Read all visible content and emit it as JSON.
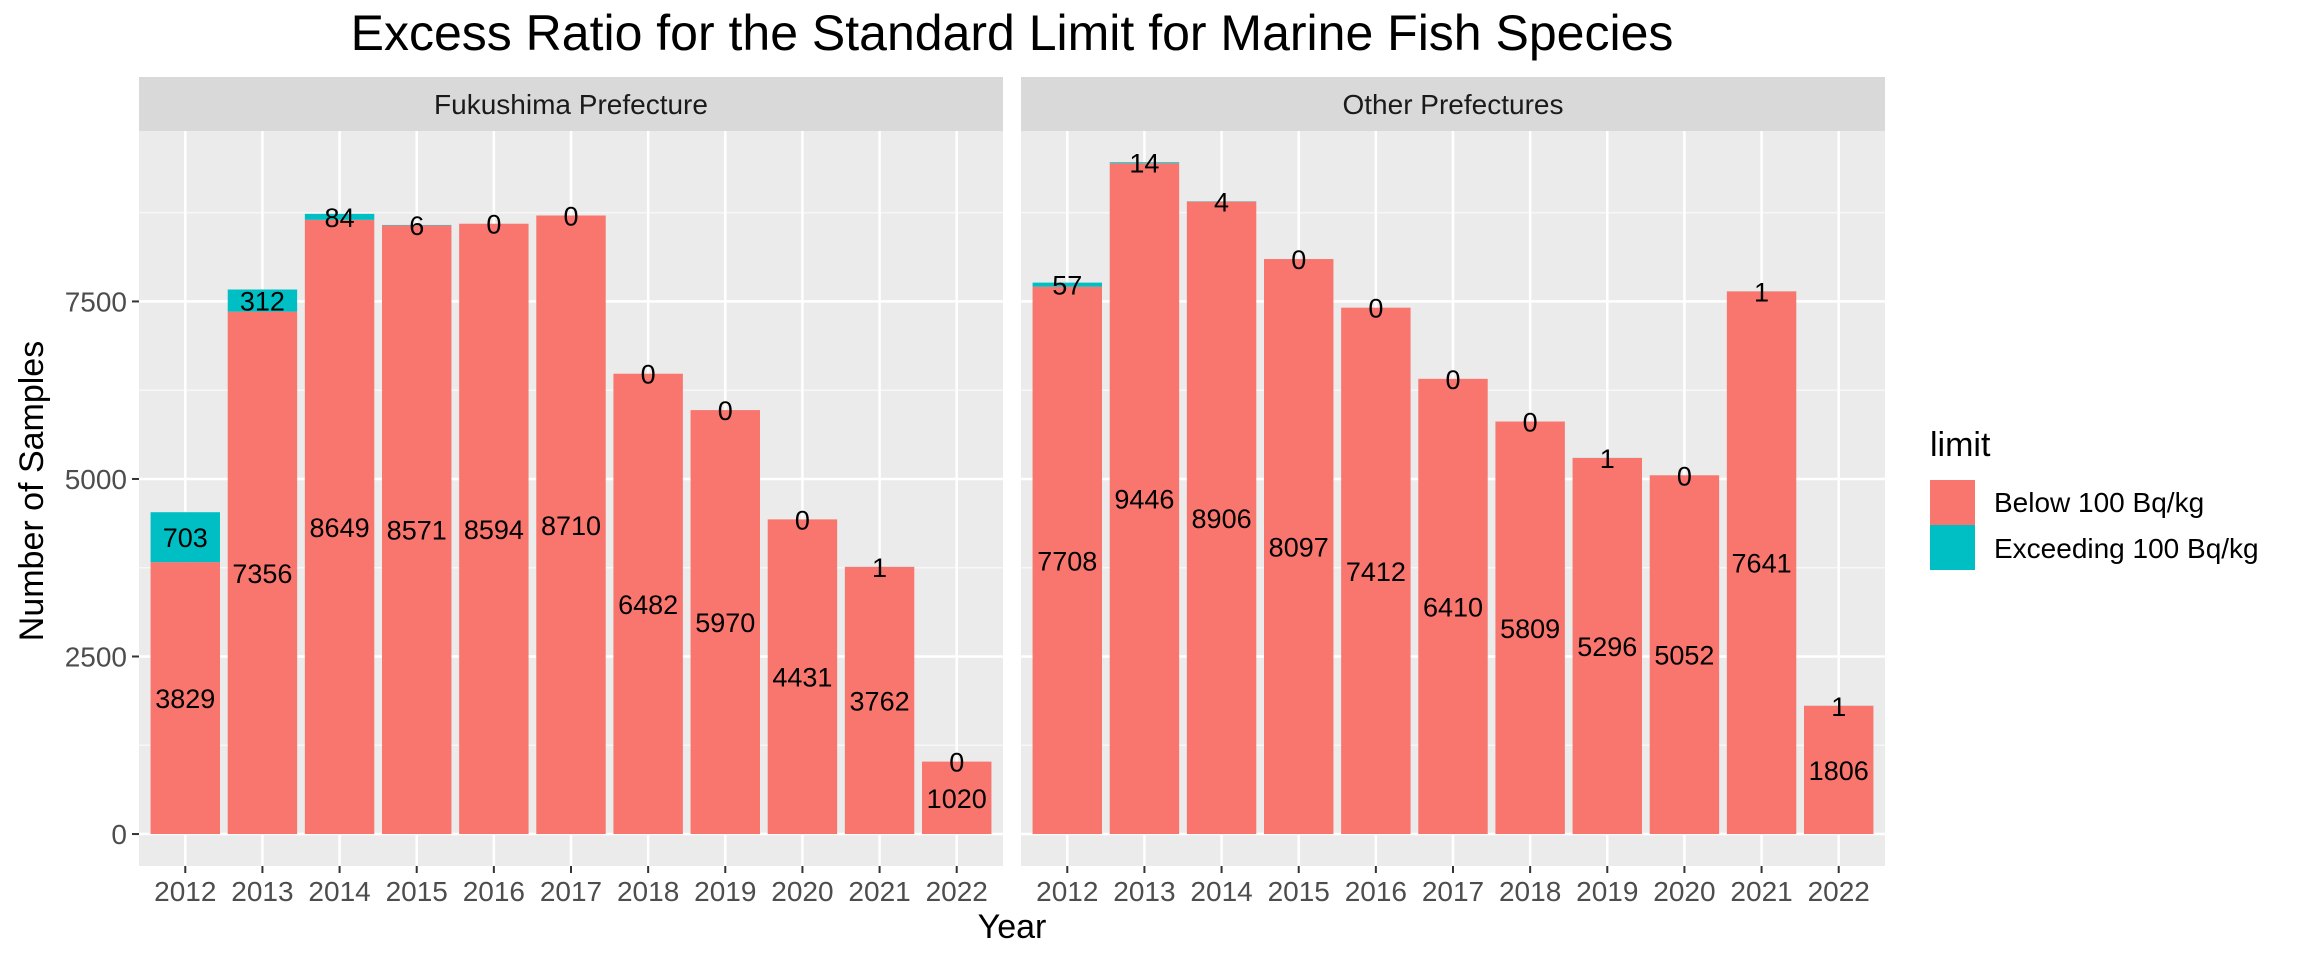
{
  "chart_data": {
    "type": "bar",
    "stacked": true,
    "title": "Excess Ratio for the Standard Limit for Marine Fish Species",
    "xlabel": "Year",
    "ylabel": "Number of Samples",
    "ylim": [
      0,
      10000
    ],
    "yticks": [
      0,
      2500,
      5000,
      7500
    ],
    "grid": true,
    "legend": {
      "title": "limit",
      "placement": "right",
      "entries": [
        {
          "label": "Below 100 Bq/kg",
          "color": "#F8766D"
        },
        {
          "label": "Exceeding 100 Bq/kg",
          "color": "#00BFC4"
        }
      ]
    },
    "categories": [
      "2012",
      "2013",
      "2014",
      "2015",
      "2016",
      "2017",
      "2018",
      "2019",
      "2020",
      "2021",
      "2022"
    ],
    "panels": [
      {
        "name": "Fukushima Prefecture",
        "series": [
          {
            "name": "Below 100 Bq/kg",
            "values": [
              3829,
              7356,
              8649,
              8571,
              8594,
              8710,
              6482,
              5970,
              4431,
              3762,
              1020
            ]
          },
          {
            "name": "Exceeding 100 Bq/kg",
            "values": [
              703,
              312,
              84,
              6,
              0,
              0,
              0,
              0,
              0,
              1,
              0
            ]
          }
        ]
      },
      {
        "name": "Other Prefectures",
        "series": [
          {
            "name": "Below 100 Bq/kg",
            "values": [
              7708,
              9446,
              8906,
              8097,
              7412,
              6410,
              5809,
              5296,
              5052,
              7641,
              1806
            ]
          },
          {
            "name": "Exceeding 100 Bq/kg",
            "values": [
              57,
              14,
              4,
              0,
              0,
              0,
              0,
              1,
              0,
              1,
              1
            ]
          }
        ]
      }
    ]
  }
}
